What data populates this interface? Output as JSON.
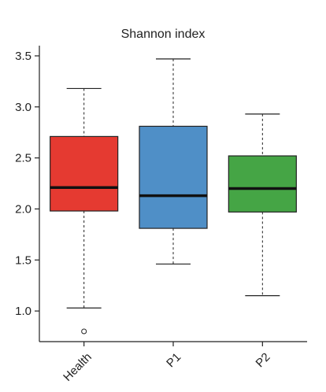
{
  "chart_data": {
    "type": "boxplot",
    "title": "Shannon index",
    "xlabel": "",
    "ylabel": "",
    "ylim": [
      0.7,
      3.6
    ],
    "yticks": [
      1.0,
      1.5,
      2.0,
      2.5,
      3.0,
      3.5
    ],
    "ytick_labels": [
      "1.0",
      "1.5",
      "2.0",
      "2.5",
      "3.0",
      "3.5"
    ],
    "categories": [
      "Health",
      "P1",
      "P2"
    ],
    "grid": false,
    "boxes": [
      {
        "name": "Health",
        "whisker_low": 1.03,
        "q1": 1.98,
        "median": 2.21,
        "q3": 2.71,
        "whisker_high": 3.18,
        "outliers": [
          0.8
        ],
        "color": "#e53a31"
      },
      {
        "name": "P1",
        "whisker_low": 1.46,
        "q1": 1.81,
        "median": 2.13,
        "q3": 2.81,
        "whisker_high": 3.47,
        "outliers": [],
        "color": "#4f8fc7"
      },
      {
        "name": "P2",
        "whisker_low": 1.15,
        "q1": 1.97,
        "median": 2.2,
        "q3": 2.52,
        "whisker_high": 2.93,
        "outliers": [],
        "color": "#45a545"
      }
    ]
  }
}
